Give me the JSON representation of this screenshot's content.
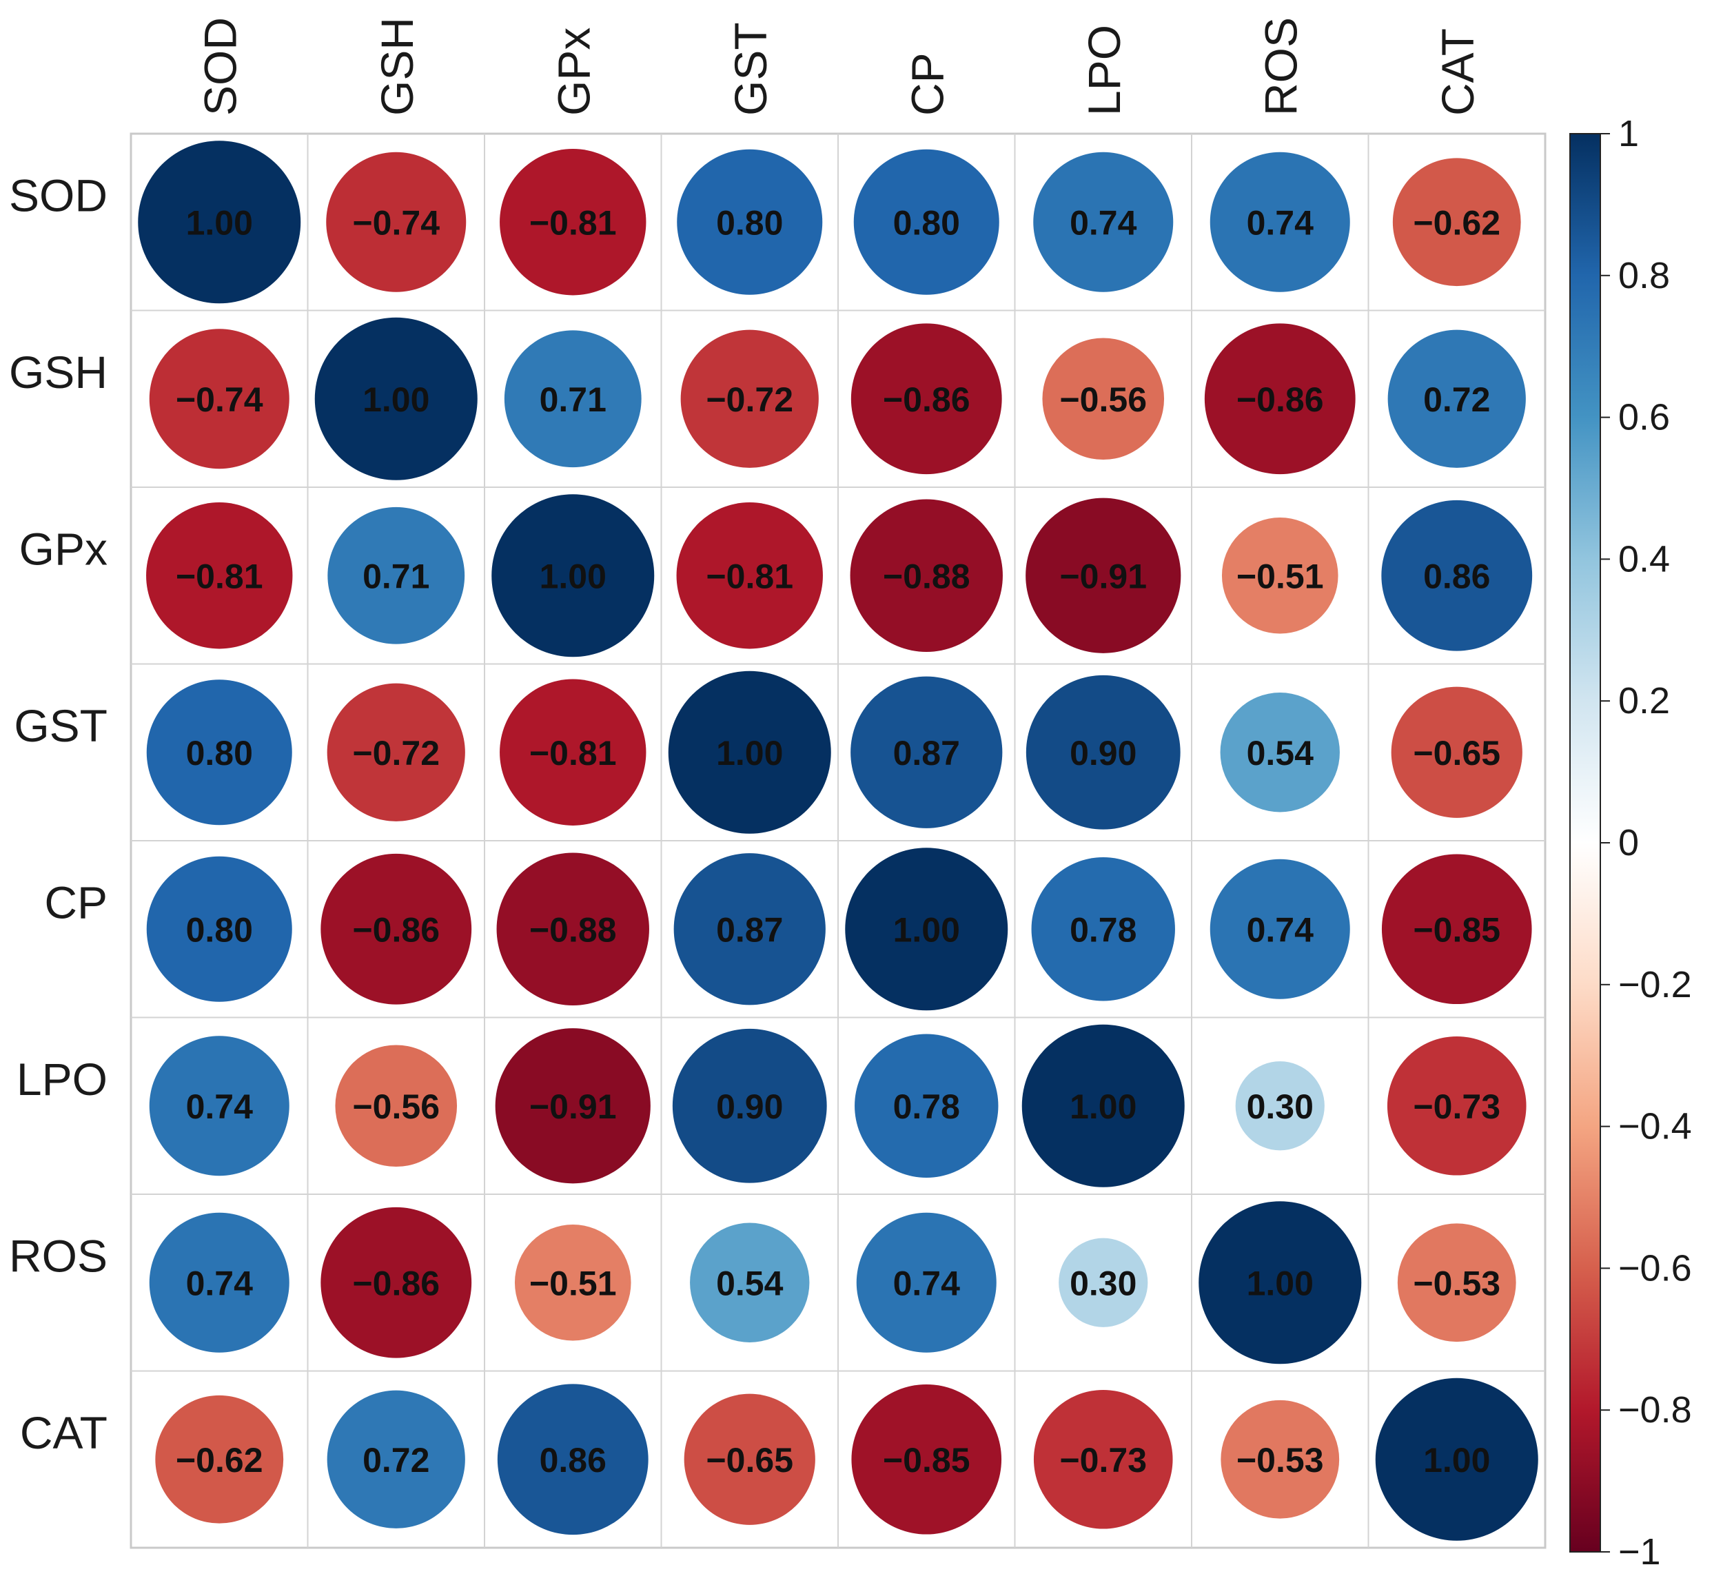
{
  "chart_data": {
    "type": "heatmap",
    "variables": [
      "SOD",
      "GSH",
      "GPx",
      "GST",
      "CP",
      "LPO",
      "ROS",
      "CAT"
    ],
    "matrix": [
      [
        1.0,
        -0.74,
        -0.81,
        0.8,
        0.8,
        0.74,
        0.74,
        -0.62
      ],
      [
        -0.74,
        1.0,
        0.71,
        -0.72,
        -0.86,
        -0.56,
        -0.86,
        0.72
      ],
      [
        -0.81,
        0.71,
        1.0,
        -0.81,
        -0.88,
        -0.91,
        -0.51,
        0.86
      ],
      [
        0.8,
        -0.72,
        -0.81,
        1.0,
        0.87,
        0.9,
        0.54,
        -0.65
      ],
      [
        0.8,
        -0.86,
        -0.88,
        0.87,
        1.0,
        0.78,
        0.74,
        -0.85
      ],
      [
        0.74,
        -0.56,
        -0.91,
        0.9,
        0.78,
        1.0,
        0.3,
        -0.73
      ],
      [
        0.74,
        -0.86,
        -0.51,
        0.54,
        0.74,
        0.3,
        1.0,
        -0.53
      ],
      [
        -0.62,
        0.72,
        0.86,
        -0.65,
        -0.85,
        -0.73,
        -0.53,
        1.0
      ]
    ],
    "value_format": "2 decimals, leading minus as '−'",
    "colorbar": {
      "range": [
        -1,
        1
      ],
      "ticks": [
        "1",
        "0.8",
        "0.6",
        "0.4",
        "0.2",
        "0",
        "−0.2",
        "−0.4",
        "−0.6",
        "−0.8",
        "−1"
      ],
      "colors": {
        "negative": "#67001f",
        "zero": "#ffffff",
        "positive": "#053061"
      }
    },
    "marker": "circle sized by |r|",
    "grid": true,
    "legend": "colorbar right"
  }
}
